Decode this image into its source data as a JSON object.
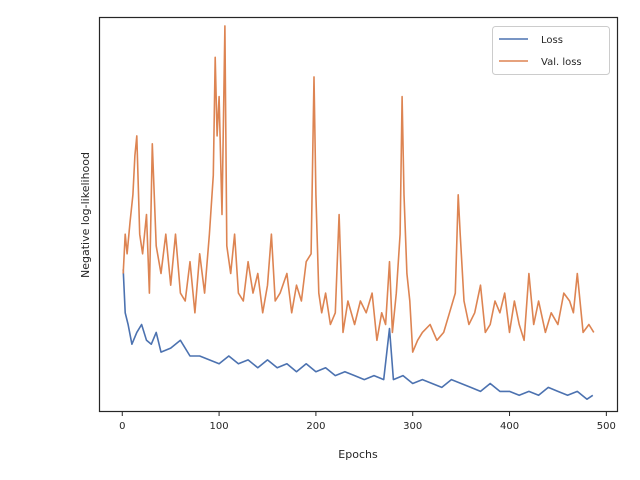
{
  "chart_data": {
    "type": "line",
    "title": "",
    "xlabel": "Epochs",
    "ylabel": "Negative log-likelihood",
    "xlim": [
      -23,
      511
    ],
    "ylim": [
      0,
      100
    ],
    "x_ticks": [
      0,
      100,
      200,
      300,
      400,
      500
    ],
    "x_tick_labels": [
      "0",
      "100",
      "200",
      "300",
      "400",
      "500"
    ],
    "y_ticks_visible": false,
    "grid": false,
    "legend_position": "top-right",
    "series": [
      {
        "name": "Loss",
        "color": "#4c72b0",
        "x": [
          1,
          3,
          6,
          10,
          15,
          20,
          25,
          30,
          35,
          40,
          50,
          60,
          70,
          80,
          90,
          100,
          110,
          120,
          130,
          140,
          150,
          160,
          170,
          180,
          190,
          200,
          210,
          220,
          230,
          240,
          250,
          260,
          270,
          276,
          280,
          290,
          300,
          310,
          320,
          330,
          340,
          350,
          360,
          370,
          380,
          390,
          400,
          410,
          420,
          430,
          440,
          450,
          460,
          470,
          480,
          486
        ],
        "values": [
          36,
          25,
          22,
          17,
          20,
          22,
          18,
          17,
          20,
          15,
          16,
          18,
          14,
          14,
          13,
          12,
          14,
          12,
          13,
          11,
          13,
          11,
          12,
          10,
          12,
          10,
          11,
          9,
          10,
          9,
          8,
          9,
          8,
          21,
          8,
          9,
          7,
          8,
          7,
          6,
          8,
          7,
          6,
          5,
          7,
          5,
          5,
          4,
          5,
          4,
          6,
          5,
          4,
          5,
          3,
          4
        ]
      },
      {
        "name": "Val. loss",
        "color": "#dd8452",
        "x": [
          1,
          3,
          5,
          8,
          11,
          13,
          15,
          18,
          21,
          25,
          28,
          31,
          35,
          40,
          45,
          50,
          55,
          60,
          65,
          70,
          75,
          80,
          85,
          90,
          94,
          96,
          98,
          100,
          103,
          106,
          108,
          112,
          116,
          120,
          125,
          130,
          135,
          140,
          145,
          150,
          154,
          158,
          163,
          170,
          175,
          180,
          185,
          190,
          195,
          198,
          200,
          203,
          206,
          210,
          215,
          220,
          224,
          228,
          233,
          240,
          246,
          252,
          258,
          263,
          268,
          272,
          276,
          279,
          283,
          287,
          289,
          291,
          294,
          297,
          300,
          305,
          310,
          318,
          325,
          332,
          338,
          344,
          347,
          349,
          353,
          358,
          364,
          370,
          375,
          380,
          385,
          390,
          395,
          400,
          405,
          410,
          415,
          420,
          425,
          430,
          437,
          443,
          450,
          456,
          462,
          466,
          470,
          476,
          482,
          487
        ],
        "values": [
          35,
          45,
          40,
          48,
          55,
          65,
          70,
          45,
          40,
          50,
          30,
          68,
          42,
          35,
          45,
          32,
          45,
          30,
          28,
          38,
          25,
          40,
          30,
          45,
          60,
          90,
          70,
          80,
          50,
          98,
          42,
          35,
          45,
          30,
          28,
          38,
          30,
          35,
          25,
          32,
          45,
          28,
          30,
          35,
          25,
          32,
          28,
          38,
          40,
          85,
          55,
          30,
          25,
          30,
          22,
          25,
          50,
          20,
          28,
          22,
          28,
          25,
          30,
          18,
          25,
          22,
          38,
          20,
          30,
          45,
          80,
          55,
          35,
          28,
          15,
          18,
          20,
          22,
          18,
          20,
          25,
          30,
          55,
          45,
          28,
          22,
          25,
          32,
          20,
          22,
          28,
          25,
          30,
          20,
          28,
          22,
          18,
          35,
          22,
          28,
          20,
          25,
          22,
          30,
          28,
          25,
          35,
          20,
          22,
          20
        ]
      }
    ]
  }
}
